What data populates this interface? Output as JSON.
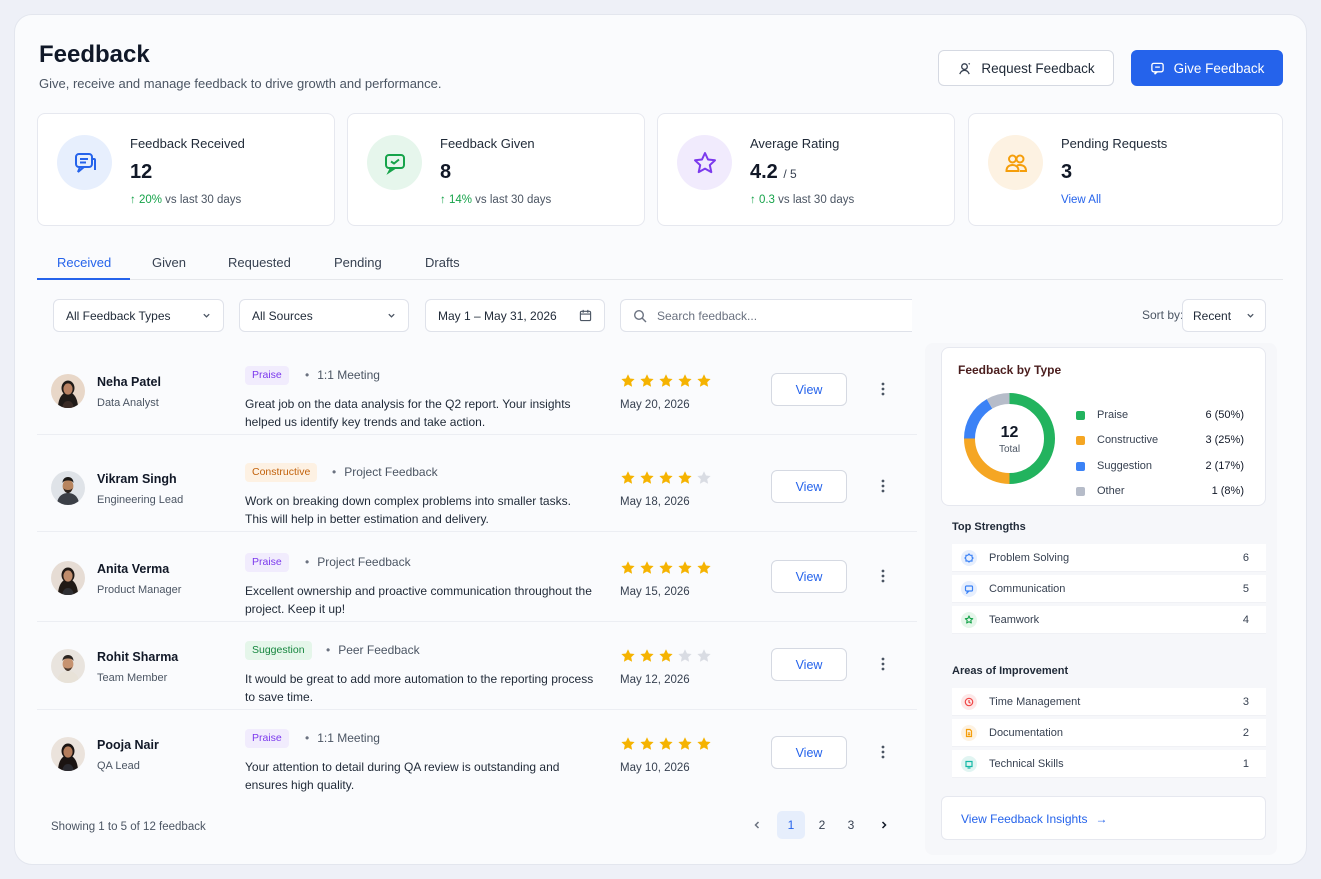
{
  "header": {
    "title": "Feedback",
    "subtitle": "Give, receive and manage feedback to drive growth and performance.",
    "request_label": "Request Feedback",
    "give_label": "Give Feedback"
  },
  "stats": [
    {
      "label": "Feedback Received",
      "value": "12",
      "trend_value": "20%",
      "trend_text": " vs last 30 days",
      "icon": "chat-icon",
      "color": "#2563eb"
    },
    {
      "label": "Feedback Given",
      "value": "8",
      "trend_value": "14%",
      "trend_text": " vs last 30 days",
      "icon": "message-icon",
      "color": "#16a34a"
    },
    {
      "label": "Average Rating",
      "value": "4.2",
      "value_suffix": "/ 5",
      "trend_value": "0.3",
      "trend_text": " vs last 30 days",
      "icon": "star-icon",
      "color": "#7c3aed"
    },
    {
      "label": "Pending Requests",
      "value": "3",
      "link": "View All",
      "icon": "users-icon",
      "color": "#f59e0b"
    }
  ],
  "tabs": [
    "Received",
    "Given",
    "Requested",
    "Pending",
    "Drafts"
  ],
  "filters": {
    "type": "All Feedback Types",
    "source": "All Sources",
    "date_range": "May 1 – May 31, 2026",
    "search_placeholder": "Search feedback...",
    "sort_label": "Sort by:",
    "sort_value": "Recent"
  },
  "feedback": [
    {
      "name": "Neha Patel",
      "role": "Data Analyst",
      "tag": "Praise",
      "tag_kind": "praise",
      "source": "1:1 Meeting",
      "message": "Great job on the data analysis for the Q2 report. Your insights helped us identify key trends and take action.",
      "rating": 5,
      "date": "May 20, 2026",
      "action": "View"
    },
    {
      "name": "Vikram Singh",
      "role": "Engineering Lead",
      "tag": "Constructive",
      "tag_kind": "constructive",
      "source": "Project Feedback",
      "message": "Work on breaking down complex problems into smaller tasks. This will help in better estimation and delivery.",
      "rating": 4,
      "date": "May 18, 2026",
      "action": "View"
    },
    {
      "name": "Anita Verma",
      "role": "Product Manager",
      "tag": "Praise",
      "tag_kind": "praise",
      "source": "Project Feedback",
      "message": "Excellent ownership and proactive communication throughout the project. Keep it up!",
      "rating": 5,
      "date": "May 15, 2026",
      "action": "View"
    },
    {
      "name": "Rohit Sharma",
      "role": "Team Member",
      "tag": "Suggestion",
      "tag_kind": "suggestion",
      "source": "Peer Feedback",
      "message": "It would be great to add more automation to the reporting process to save time.",
      "rating": 3,
      "date": "May 12, 2026",
      "action": "View"
    },
    {
      "name": "Pooja Nair",
      "role": "QA Lead",
      "tag": "Praise",
      "tag_kind": "praise",
      "source": "1:1 Meeting",
      "message": "Your attention to detail during QA review is outstanding and ensures high quality.",
      "rating": 5,
      "date": "May 10, 2026",
      "action": "View"
    }
  ],
  "pagination": {
    "summary": "Showing 1 to 5 of 12 feedback",
    "pages": [
      "1",
      "2",
      "3"
    ],
    "current": "1"
  },
  "by_type": {
    "title": "Feedback by Type",
    "total_value": "12",
    "total_label": "Total",
    "items": [
      {
        "name": "Praise",
        "value": "6 (50%)",
        "count": 6,
        "color": "#22b35e"
      },
      {
        "name": "Constructive",
        "value": "3 (25%)",
        "count": 3,
        "color": "#f5a623"
      },
      {
        "name": "Suggestion",
        "value": "2 (17%)",
        "count": 2,
        "color": "#3b82f6"
      },
      {
        "name": "Other",
        "value": "1 (8%)",
        "count": 1,
        "color": "#b6bcc9"
      }
    ]
  },
  "strengths": {
    "title": "Top Strengths",
    "items": [
      {
        "name": "Problem Solving",
        "value": "6",
        "icon": "badge-icon",
        "color": "#3b82f6"
      },
      {
        "name": "Communication",
        "value": "5",
        "icon": "chat-icon",
        "color": "#3b82f6"
      },
      {
        "name": "Teamwork",
        "value": "4",
        "icon": "star-icon",
        "color": "#16a34a"
      }
    ]
  },
  "improvement": {
    "title": "Areas of Improvement",
    "items": [
      {
        "name": "Time Management",
        "value": "3",
        "icon": "clock-icon",
        "color": "#ef4444"
      },
      {
        "name": "Documentation",
        "value": "2",
        "icon": "document-icon",
        "color": "#f59e0b"
      },
      {
        "name": "Technical Skills",
        "value": "1",
        "icon": "code-icon",
        "color": "#14b8a6"
      }
    ]
  },
  "insights_link": "View Feedback Insights",
  "colors": {
    "accent": "#2563eb",
    "star": "#f5b301",
    "star_empty": "#d9dce3"
  }
}
